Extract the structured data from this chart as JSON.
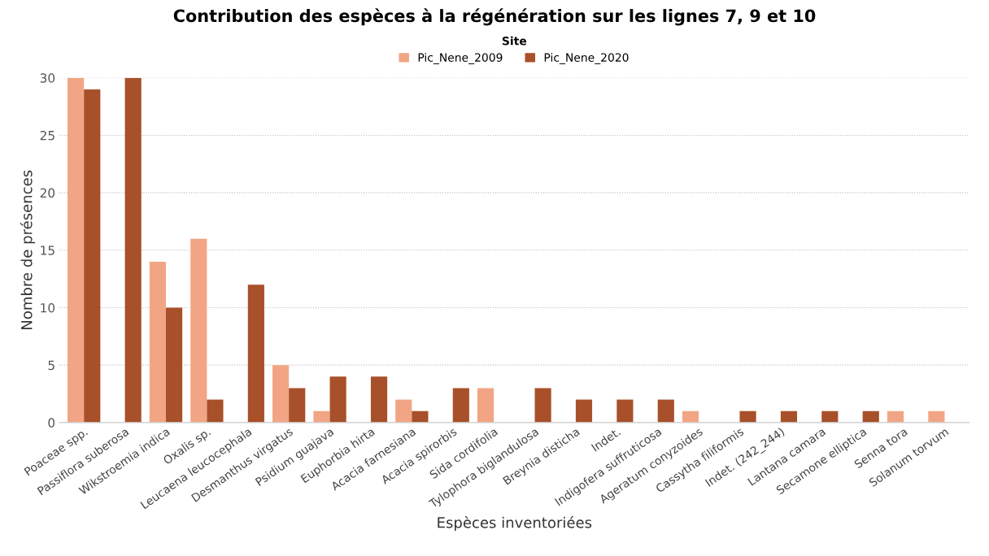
{
  "chart_data": {
    "type": "bar",
    "title": "Contribution des espèces à la régénération sur les lignes 7, 9 et 10",
    "xlabel": "Espèces inventoriées",
    "ylabel": "Nombre de présences",
    "legend_title": "Site",
    "legend": "top",
    "categories": [
      "Poaceae spp.",
      "Passiflora suberosa",
      "Wikstroemia indica",
      "Oxalis sp.",
      "Leucaena leucocephala",
      "Desmanthus virgatus",
      "Psidium guajava",
      "Euphorbia hirta",
      "Acacia farnesiana",
      "Acacia spirorbis",
      "Sida cordifolia",
      "Tylophora biglandulosa",
      "Breynia disticha",
      "Indet.",
      "Indigofera suffruticosa",
      "Ageratum conyzoides",
      "Cassytha filiformis",
      "Indet. (242_244)",
      "Lantana camara",
      "Secamone elliptica",
      "Senna tora",
      "Solanum torvum"
    ],
    "series": [
      {
        "name": "Pic_Nene_2009",
        "color": "#f2a584",
        "values": [
          30,
          null,
          14,
          16,
          null,
          5,
          1,
          null,
          2,
          null,
          3,
          null,
          null,
          null,
          null,
          1,
          null,
          null,
          null,
          null,
          1,
          1
        ]
      },
      {
        "name": "Pic_Nene_2020",
        "color": "#a8502a",
        "values": [
          29,
          30,
          10,
          2,
          12,
          3,
          4,
          4,
          1,
          3,
          null,
          3,
          2,
          2,
          2,
          null,
          1,
          1,
          1,
          1,
          null,
          null
        ]
      }
    ],
    "ylim": [
      0,
      30
    ],
    "yticks": [
      0,
      5,
      10,
      15,
      20,
      25,
      30
    ],
    "grid": "y"
  }
}
